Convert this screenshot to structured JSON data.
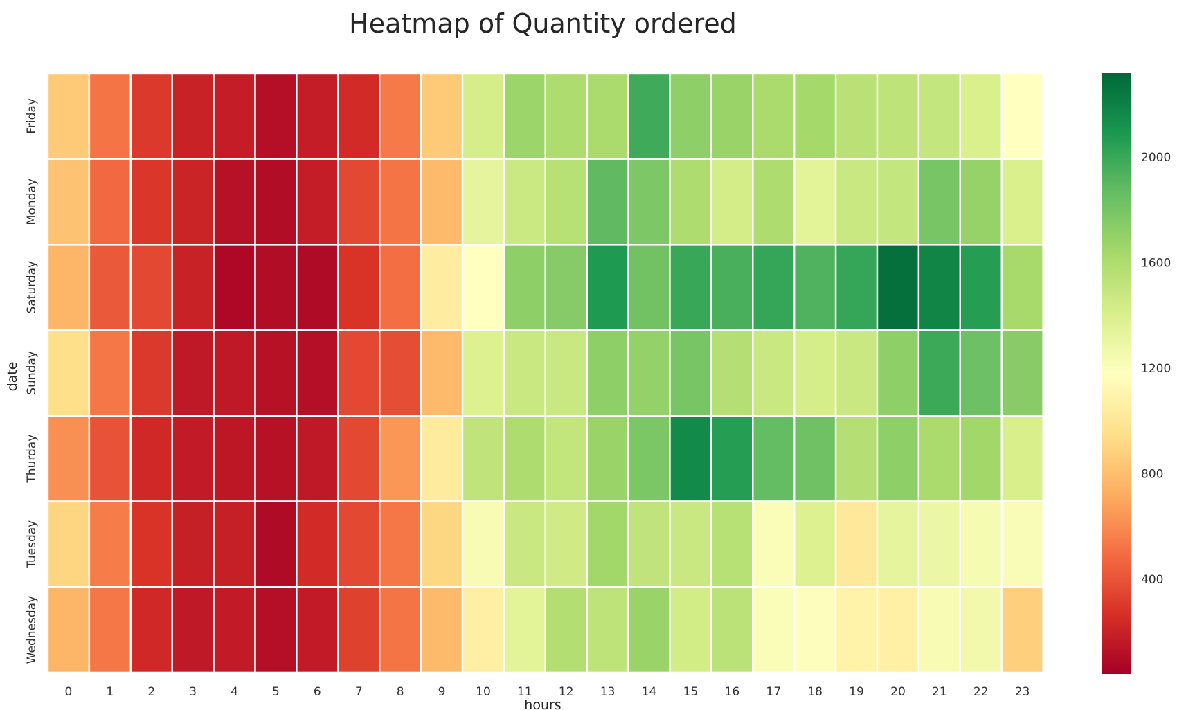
{
  "chart_data": {
    "type": "heatmap",
    "title": "Heatmap of Quantity ordered",
    "xlabel": "hours",
    "ylabel": "date",
    "x": [
      "0",
      "1",
      "2",
      "3",
      "4",
      "5",
      "6",
      "7",
      "8",
      "9",
      "10",
      "11",
      "12",
      "13",
      "14",
      "15",
      "16",
      "17",
      "18",
      "19",
      "20",
      "21",
      "22",
      "23"
    ],
    "y": [
      "Friday",
      "Monday",
      "Saturday",
      "Sunday",
      "Thurday",
      "Tuesday",
      "Wednesday"
    ],
    "values": [
      [
        850,
        520,
        300,
        200,
        180,
        110,
        180,
        240,
        540,
        850,
        1420,
        1670,
        1600,
        1620,
        1980,
        1720,
        1680,
        1620,
        1640,
        1550,
        1530,
        1500,
        1400,
        1180
      ],
      [
        820,
        480,
        290,
        210,
        120,
        100,
        180,
        360,
        520,
        780,
        1330,
        1470,
        1560,
        1880,
        1780,
        1600,
        1430,
        1600,
        1350,
        1480,
        1500,
        1800,
        1690,
        1400
      ],
      [
        760,
        420,
        360,
        200,
        80,
        100,
        90,
        280,
        500,
        1050,
        1180,
        1720,
        1750,
        2080,
        1820,
        2000,
        1950,
        2010,
        1930,
        2010,
        2280,
        2180,
        2060,
        1630
      ],
      [
        950,
        530,
        300,
        160,
        160,
        120,
        110,
        360,
        380,
        780,
        1380,
        1480,
        1480,
        1720,
        1700,
        1800,
        1570,
        1480,
        1420,
        1480,
        1720,
        1990,
        1840,
        1740
      ],
      [
        620,
        400,
        230,
        170,
        150,
        120,
        160,
        360,
        640,
        1030,
        1520,
        1600,
        1510,
        1680,
        1790,
        2160,
        2060,
        1870,
        1830,
        1570,
        1720,
        1620,
        1650,
        1410
      ],
      [
        900,
        550,
        280,
        190,
        190,
        90,
        240,
        360,
        530,
        910,
        1230,
        1480,
        1450,
        1650,
        1520,
        1480,
        1560,
        1210,
        1380,
        1020,
        1330,
        1300,
        1240,
        1220
      ],
      [
        760,
        530,
        230,
        160,
        170,
        110,
        170,
        330,
        520,
        780,
        1060,
        1350,
        1580,
        1530,
        1680,
        1440,
        1540,
        1210,
        1190,
        1090,
        1070,
        1230,
        1260,
        880
      ]
    ],
    "vmin": 40,
    "vmax": 2320,
    "colormap": "RdYlGn",
    "colorbar_ticks": [
      400,
      800,
      1200,
      1600,
      2000
    ],
    "colorbar_tick_labels": [
      "400",
      "800",
      "1200",
      "1600",
      "2000"
    ],
    "grid_color": "#ffffff"
  }
}
